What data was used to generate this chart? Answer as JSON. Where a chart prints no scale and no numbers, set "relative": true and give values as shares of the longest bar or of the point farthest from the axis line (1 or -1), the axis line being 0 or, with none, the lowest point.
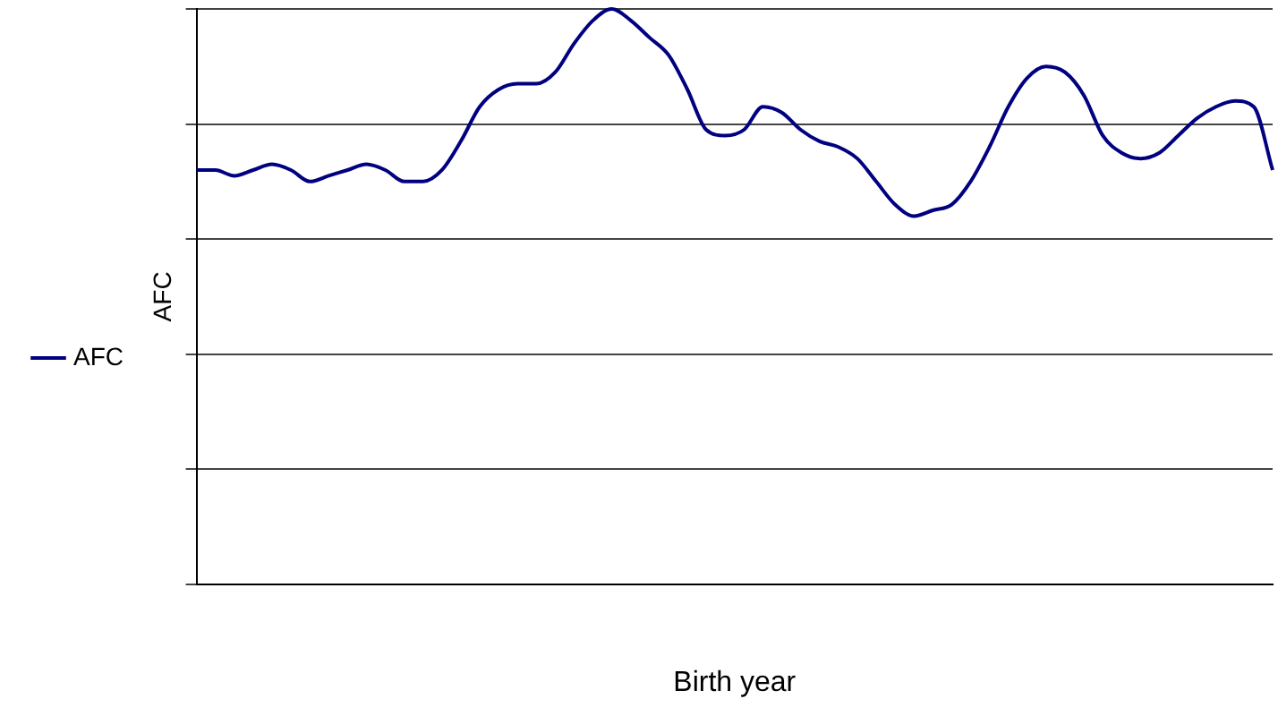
{
  "chart_data": {
    "type": "line",
    "xlabel": "Birth year",
    "ylabel": "AFC",
    "relative": true,
    "grid": "y",
    "legend": "left",
    "marker": "none",
    "line_style": "solid",
    "categories": [
      null,
      null,
      null,
      null,
      null,
      null,
      null,
      null,
      null,
      null,
      null,
      null,
      null,
      null,
      null,
      null,
      null,
      null,
      null,
      null,
      null,
      null,
      null,
      null,
      null,
      null,
      null,
      null,
      null,
      null,
      null,
      null,
      null,
      null,
      null,
      null,
      null,
      null,
      null,
      null,
      null,
      null,
      null,
      null,
      null,
      null,
      null,
      null,
      null,
      null,
      null,
      null,
      null,
      null,
      null,
      null,
      null,
      null
    ],
    "series": [
      {
        "name": "AFC",
        "color": "#000080",
        "values": [
          0.72,
          0.72,
          0.71,
          0.72,
          0.73,
          0.72,
          0.7,
          0.71,
          0.72,
          0.73,
          0.72,
          0.7,
          0.7,
          0.72,
          0.77,
          0.83,
          0.86,
          0.87,
          0.87,
          0.89,
          0.94,
          0.98,
          1,
          0.98,
          0.95,
          0.92,
          0.86,
          0.79,
          0.78,
          0.79,
          0.83,
          0.82,
          0.79,
          0.77,
          0.76,
          0.74,
          0.7,
          0.66,
          0.64,
          0.65,
          0.66,
          0.7,
          0.76,
          0.83,
          0.88,
          0.9,
          0.89,
          0.85,
          0.78,
          0.75,
          0.74,
          0.75,
          0.78,
          0.81,
          0.83,
          0.84,
          0.83,
          0.72
        ]
      }
    ]
  }
}
